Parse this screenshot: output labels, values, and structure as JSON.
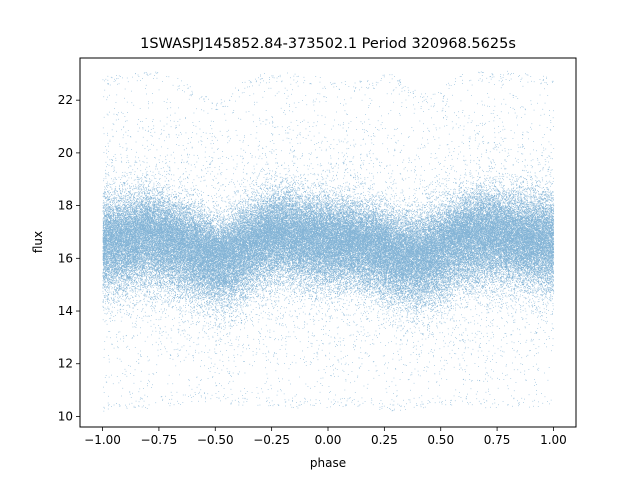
{
  "chart_data": {
    "type": "scatter",
    "title": "1SWASPJ145852.84-373502.1 Period 320968.5625s",
    "xlabel": "phase",
    "ylabel": "flux",
    "xlim": [
      -1.1,
      1.1
    ],
    "ylim": [
      9.6,
      23.6
    ],
    "xticks": [
      -1.0,
      -0.75,
      -0.5,
      -0.25,
      0.0,
      0.25,
      0.5,
      0.75,
      1.0
    ],
    "xtick_labels": [
      "−1.00",
      "−0.75",
      "−0.50",
      "−0.25",
      "0.00",
      "0.25",
      "0.50",
      "0.75",
      "1.00"
    ],
    "yticks": [
      10,
      12,
      14,
      16,
      18,
      20,
      22
    ],
    "ytick_labels": [
      "10",
      "12",
      "14",
      "16",
      "18",
      "20",
      "22"
    ],
    "grid": false,
    "legend": "none",
    "marker_color": "#1f77b4",
    "point_count_shown": 100000,
    "envelope": {
      "x": [
        -1.0,
        -0.9,
        -0.8,
        -0.75,
        -0.7,
        -0.6,
        -0.5,
        -0.45,
        -0.4,
        -0.3,
        -0.25,
        -0.2,
        -0.1,
        0.0,
        0.1,
        0.2,
        0.25,
        0.3,
        0.4,
        0.5,
        0.55,
        0.6,
        0.7,
        0.75,
        0.8,
        0.9,
        1.0
      ],
      "median": [
        16.6,
        16.7,
        16.9,
        16.8,
        16.7,
        16.3,
        16.0,
        16.0,
        16.3,
        16.7,
        16.9,
        16.9,
        16.8,
        16.7,
        16.6,
        16.5,
        16.3,
        16.1,
        16.0,
        16.3,
        16.6,
        16.8,
        16.9,
        16.9,
        16.8,
        16.7,
        16.6
      ],
      "upper_dense": [
        18.3,
        18.3,
        18.5,
        18.3,
        18.2,
        17.8,
        17.4,
        17.4,
        17.8,
        18.2,
        18.4,
        18.5,
        18.3,
        18.2,
        18.1,
        17.9,
        17.8,
        17.6,
        17.5,
        17.8,
        18.1,
        18.3,
        18.5,
        18.5,
        18.4,
        18.3,
        18.3
      ],
      "lower_dense": [
        14.8,
        15.0,
        15.1,
        15.0,
        14.8,
        14.6,
        14.3,
        14.2,
        14.5,
        15.0,
        15.2,
        15.3,
        15.1,
        15.0,
        15.0,
        14.8,
        14.6,
        14.4,
        14.2,
        14.5,
        14.8,
        15.0,
        15.1,
        15.2,
        15.1,
        15.0,
        14.8
      ],
      "max": [
        22.9,
        23.0,
        23.1,
        23.1,
        23.0,
        22.5,
        22.0,
        22.1,
        22.6,
        23.0,
        23.1,
        23.1,
        23.0,
        22.8,
        22.7,
        22.8,
        23.1,
        22.9,
        22.3,
        22.4,
        22.8,
        23.0,
        23.1,
        23.1,
        23.1,
        23.0,
        22.9
      ],
      "min": [
        10.2,
        10.3,
        10.3,
        10.4,
        10.4,
        10.5,
        10.6,
        10.5,
        10.4,
        10.4,
        10.4,
        10.3,
        10.3,
        10.3,
        10.4,
        10.3,
        10.2,
        10.2,
        10.3,
        10.3,
        10.4,
        10.4,
        10.3,
        10.3,
        10.4,
        10.3,
        10.5
      ]
    }
  }
}
